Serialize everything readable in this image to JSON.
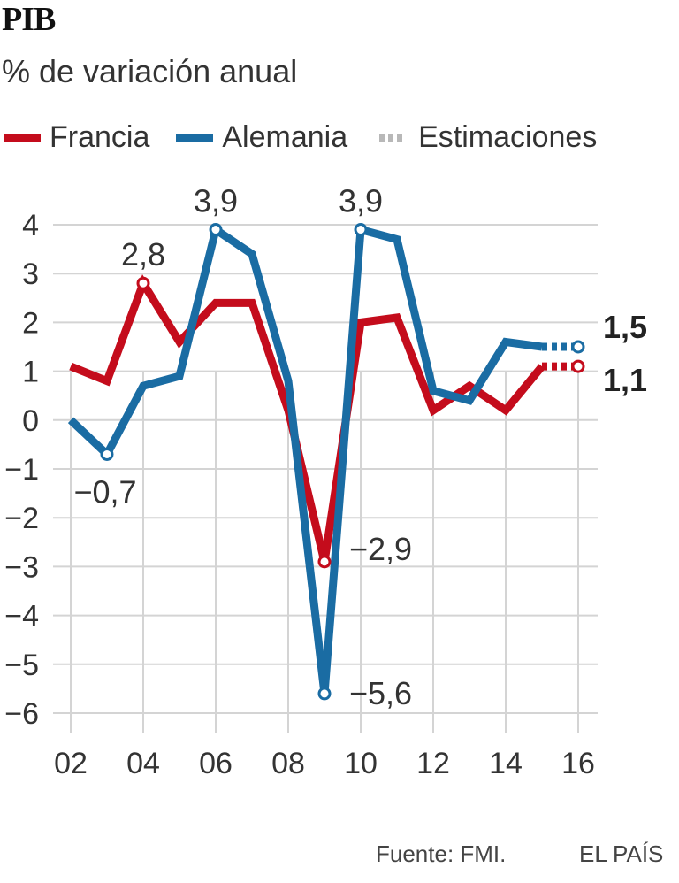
{
  "header": {
    "title": "PIB",
    "subtitle": "% de variación anual"
  },
  "legend": {
    "items": [
      {
        "label": "Francia",
        "color": "#c40c1c",
        "icon": "solid-line"
      },
      {
        "label": "Alemania",
        "color": "#1a6ca3",
        "icon": "solid-line"
      },
      {
        "label": "Estimaciones",
        "color": "#b8b8b8",
        "icon": "dotted-line"
      }
    ]
  },
  "footer": {
    "source": "Fuente: FMI.",
    "publisher": "EL PAÍS"
  },
  "chart_data": {
    "type": "line",
    "title": "PIB",
    "subtitle": "% de variación anual",
    "xlabel": "",
    "ylabel": "",
    "x": [
      2002,
      2003,
      2004,
      2005,
      2006,
      2007,
      2008,
      2009,
      2010,
      2011,
      2012,
      2013,
      2014,
      2015,
      2016
    ],
    "xticks": [
      2002,
      2004,
      2006,
      2008,
      2010,
      2012,
      2014,
      2016
    ],
    "xtick_labels": [
      "02",
      "04",
      "06",
      "08",
      "10",
      "12",
      "14",
      "16"
    ],
    "yticks": [
      4,
      3,
      2,
      1,
      0,
      -1,
      -2,
      -3,
      -4,
      -5,
      -6
    ],
    "ytick_labels": [
      "4",
      "3",
      "2",
      "1",
      "0",
      "−1",
      "−2",
      "−3",
      "−4",
      "−5",
      "−6"
    ],
    "ylim": [
      -6,
      4
    ],
    "xlim": [
      2002,
      2016
    ],
    "grid": true,
    "legend_position": "top-left",
    "estimate_from": 2015,
    "series": [
      {
        "name": "Francia",
        "color": "#c40c1c",
        "values": [
          1.1,
          0.8,
          2.8,
          1.6,
          2.4,
          2.4,
          0.2,
          -2.9,
          2.0,
          2.1,
          0.2,
          0.7,
          0.2,
          1.1,
          1.1
        ]
      },
      {
        "name": "Alemania",
        "color": "#1a6ca3",
        "values": [
          0.0,
          -0.7,
          0.7,
          0.9,
          3.9,
          3.4,
          0.8,
          -5.6,
          3.9,
          3.7,
          0.6,
          0.4,
          1.6,
          1.5,
          1.5
        ]
      }
    ],
    "annotations": [
      {
        "series": "Alemania",
        "x": 2003,
        "text": "−0,7",
        "position": "below"
      },
      {
        "series": "Francia",
        "x": 2004,
        "text": "2,8",
        "position": "above"
      },
      {
        "series": "Alemania",
        "x": 2006,
        "text": "3,9",
        "position": "above"
      },
      {
        "series": "Francia",
        "x": 2009,
        "text": "−2,9",
        "position": "right"
      },
      {
        "series": "Alemania",
        "x": 2009,
        "text": "−5,6",
        "position": "right"
      },
      {
        "series": "Alemania",
        "x": 2010,
        "text": "3,9",
        "position": "above"
      },
      {
        "series": "Alemania",
        "x": 2016,
        "text": "1,5",
        "position": "right",
        "bold": true
      },
      {
        "series": "Francia",
        "x": 2016,
        "text": "1,1",
        "position": "right",
        "bold": true
      }
    ]
  }
}
